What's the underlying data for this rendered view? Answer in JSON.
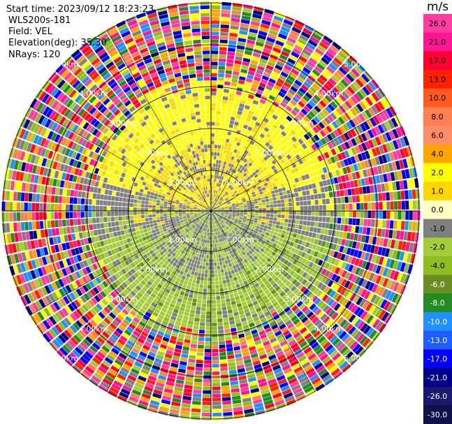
{
  "header": {
    "start_time": "Start time: 2023/09/12 18:23:23",
    "instrument": "WLS200s-181",
    "field": "Field: VEL",
    "elevation": "Elevation(deg): 35.30",
    "nrays": "NRays: 120"
  },
  "chart_data": {
    "type": "heatmap",
    "subtype": "polar-ppi",
    "field": "VEL",
    "nrays": 120,
    "elevation_deg": 35.3,
    "range_ring_labels": [
      "1.00km",
      "2.00km",
      "3.00km",
      "4.00km",
      "5.00km"
    ],
    "colorbar": {
      "unit": "m/s",
      "ticks": [
        "26.0",
        "21.0",
        "17.0",
        "13.0",
        "10.0",
        "8.0",
        "6.0",
        "4.0",
        "2.0",
        "1.0",
        "0.0",
        "-1.0",
        "-2.0",
        "-4.0",
        "-6.0",
        "-8.0",
        "-10.0",
        "-13.0",
        "-17.0",
        "-21.0",
        "-26.0",
        "-30.0"
      ],
      "colors": [
        "#ff3ca0",
        "#ff1493",
        "#ff0033",
        "#ff2200",
        "#ff5a1e",
        "#ff7f50",
        "#ff8c69",
        "#ffa500",
        "#ffff00",
        "#ffd700",
        "#ffffc0",
        "#808080",
        "#a6cc3c",
        "#8fbc1f",
        "#6b8e23",
        "#228b22",
        "#1e90ff",
        "#1e5cff",
        "#0000ff",
        "#00008b",
        "#191970",
        "#10104a"
      ]
    }
  }
}
